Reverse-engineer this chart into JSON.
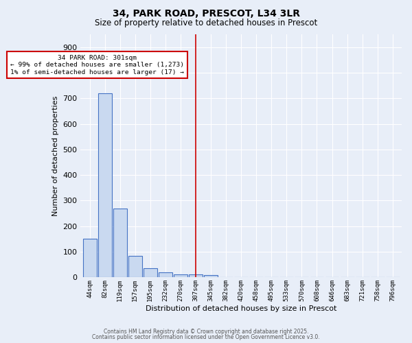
{
  "title1": "34, PARK ROAD, PRESCOT, L34 3LR",
  "title2": "Size of property relative to detached houses in Prescot",
  "xlabel": "Distribution of detached houses by size in Prescot",
  "ylabel": "Number of detached properties",
  "categories": [
    "44sqm",
    "82sqm",
    "119sqm",
    "157sqm",
    "195sqm",
    "232sqm",
    "270sqm",
    "307sqm",
    "345sqm",
    "382sqm",
    "420sqm",
    "458sqm",
    "495sqm",
    "533sqm",
    "570sqm",
    "608sqm",
    "646sqm",
    "683sqm",
    "721sqm",
    "758sqm",
    "796sqm"
  ],
  "values": [
    150,
    720,
    270,
    83,
    37,
    20,
    12,
    12,
    10,
    0,
    0,
    0,
    0,
    0,
    0,
    0,
    0,
    0,
    0,
    0,
    0
  ],
  "bar_color": "#c9d9f0",
  "bar_edge_color": "#4472c4",
  "red_line_index": 7,
  "red_line_color": "#cc0000",
  "ylim": [
    0,
    950
  ],
  "yticks": [
    0,
    100,
    200,
    300,
    400,
    500,
    600,
    700,
    800,
    900
  ],
  "annotation_title": "34 PARK ROAD: 301sqm",
  "annotation_line1": "← 99% of detached houses are smaller (1,273)",
  "annotation_line2": "1% of semi-detached houses are larger (17) →",
  "annotation_box_color": "#ffffff",
  "annotation_border_color": "#cc0000",
  "background_color": "#e8eef8",
  "grid_color": "#ffffff",
  "footer1": "Contains HM Land Registry data © Crown copyright and database right 2025.",
  "footer2": "Contains public sector information licensed under the Open Government Licence v3.0."
}
